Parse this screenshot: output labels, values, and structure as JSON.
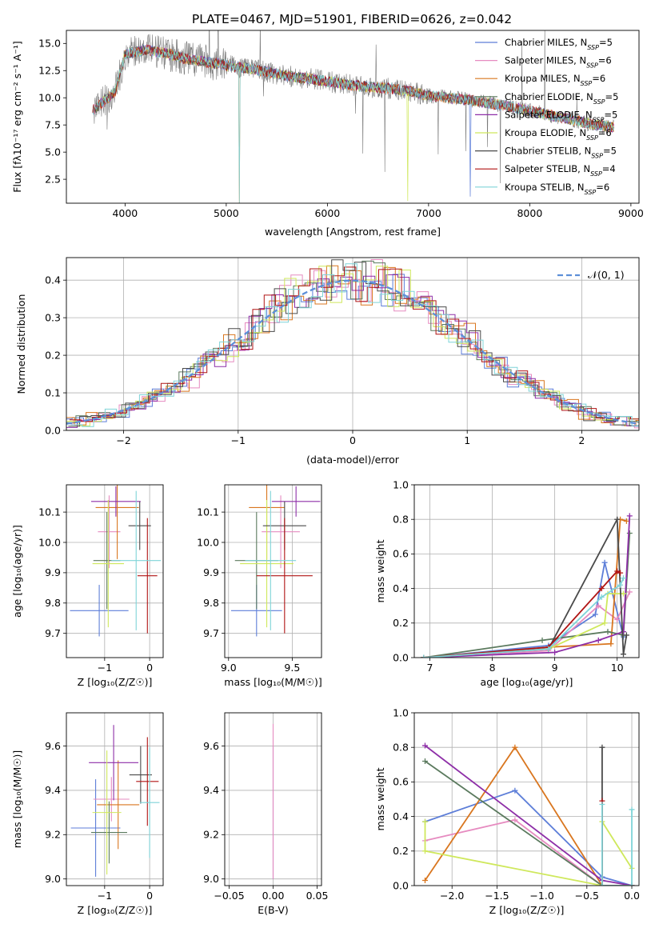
{
  "figure_title": "PLATE=0467, MJD=51901, FIBERID=0626, z=0.042",
  "palette": [
    "#5d7ed8",
    "#e68bc0",
    "#d9761f",
    "#5b7a5e",
    "#8e2fa8",
    "#cfe85c",
    "#4a4a4a",
    "#b01414",
    "#7fd4d8"
  ],
  "chart_data": [
    {
      "id": "spectrum",
      "type": "line",
      "title": "PLATE=0467, MJD=51901, FIBERID=0626, z=0.042",
      "xlabel": "wavelength [Angstrom, rest frame]",
      "ylabel": "Flux [fλ10⁻¹⁷ erg cm⁻² s⁻¹ A⁻¹]",
      "xlim": [
        3420,
        9080
      ],
      "ylim": [
        0.3,
        16.2
      ],
      "xticks": [
        "4000",
        "5000",
        "6000",
        "7000",
        "8000",
        "9000"
      ],
      "yticks": [
        "2.5",
        "5.0",
        "7.5",
        "10.0",
        "12.5",
        "15.0"
      ],
      "grid": false,
      "legend_position": "top-right",
      "series": [
        {
          "name": "Chabrier MILES, N_SSP=5"
        },
        {
          "name": "Salpeter MILES, N_SSP=6"
        },
        {
          "name": "Kroupa MILES, N_SSP=6"
        },
        {
          "name": "Chabrier ELODIE, N_SSP=5"
        },
        {
          "name": "Salpeter ELODIE, N_SSP=5"
        },
        {
          "name": "Kroupa ELODIE, N_SSP=6"
        },
        {
          "name": "Chabrier STELIB, N_SSP=5"
        },
        {
          "name": "Salpeter STELIB, N_SSP=4"
        },
        {
          "name": "Kroupa STELIB, N_SSP=6"
        }
      ],
      "data_trend": {
        "wavelength": [
          3700,
          3900,
          4000,
          4200,
          4400,
          4600,
          4800,
          5000,
          5200,
          5400,
          5600,
          5800,
          6000,
          6200,
          6400,
          6600,
          6800,
          7000,
          7200,
          7400,
          7600,
          7800,
          8000,
          8200,
          8400,
          8600,
          8800
        ],
        "flux": [
          9.0,
          10.5,
          14.0,
          14.4,
          14.1,
          13.6,
          13.3,
          13.0,
          12.7,
          12.4,
          12.0,
          11.8,
          11.5,
          11.2,
          11.0,
          10.9,
          10.6,
          10.2,
          10.0,
          9.8,
          9.5,
          9.2,
          8.8,
          8.4,
          8.0,
          7.6,
          7.3
        ]
      }
    },
    {
      "id": "residuals",
      "type": "histogram",
      "xlabel": "(data-model)/error",
      "ylabel": "Normed distribution",
      "xlim": [
        -2.5,
        2.5
      ],
      "ylim": [
        0,
        0.46
      ],
      "xticks": [
        "−2",
        "−1",
        "0",
        "1",
        "2"
      ],
      "yticks": [
        "0.0",
        "0.1",
        "0.2",
        "0.3",
        "0.4"
      ],
      "grid": true,
      "legend_position": "top-right",
      "reference_curve": {
        "name": "𝒩(0, 1)",
        "mean": 0,
        "sigma": 1
      }
    },
    {
      "id": "age_vs_Z",
      "type": "errorbar",
      "xlabel": "Z [log₁₀(Z/Z☉)]",
      "ylabel": "age  [log₁₀(age/yr)]",
      "xlim": [
        -1.85,
        0.3
      ],
      "ylim": [
        9.62,
        10.19
      ],
      "xticks": [
        "−1",
        "0"
      ],
      "yticks": [
        "9.7",
        "9.8",
        "9.9",
        "10.0",
        "10.1"
      ],
      "grid": true,
      "points": [
        {
          "x": -1.12,
          "xerr": 0.65,
          "y": 9.775,
          "yerr": 0.085
        },
        {
          "x": -0.9,
          "xerr": 0.25,
          "y": 10.035,
          "yerr": 0.12
        },
        {
          "x": -0.72,
          "xerr": 0.48,
          "y": 10.115,
          "yerr": 0.17
        },
        {
          "x": -0.95,
          "xerr": 0.3,
          "y": 9.94,
          "yerr": 0.16
        },
        {
          "x": -0.75,
          "xerr": 0.55,
          "y": 10.135,
          "yerr": 0.05
        },
        {
          "x": -0.92,
          "xerr": 0.35,
          "y": 9.93,
          "yerr": 0.21
        },
        {
          "x": -0.22,
          "xerr": 0.25,
          "y": 10.055,
          "yerr": 0.08
        },
        {
          "x": -0.05,
          "xerr": 0.22,
          "y": 9.89,
          "yerr": 0.19
        },
        {
          "x": -0.3,
          "xerr": 0.55,
          "y": 9.94,
          "yerr": 0.23
        }
      ]
    },
    {
      "id": "age_vs_mass",
      "type": "errorbar",
      "xlabel": "mass [log₁₀(M/M☉)]",
      "ylabel": "",
      "xlim": [
        8.97,
        9.73
      ],
      "ylim": [
        9.62,
        10.19
      ],
      "xticks": [
        "9.0",
        "9.5"
      ],
      "yticks": [
        "9.7",
        "9.8",
        "9.9",
        "10.0",
        "10.1"
      ],
      "grid": true,
      "points": [
        {
          "x": 9.22,
          "xerr": 0.2,
          "y": 9.775,
          "yerr": 0.085
        },
        {
          "x": 9.41,
          "xerr": 0.15,
          "y": 10.035,
          "yerr": 0.12
        },
        {
          "x": 9.3,
          "xerr": 0.14,
          "y": 10.115,
          "yerr": 0.17
        },
        {
          "x": 9.22,
          "xerr": 0.17,
          "y": 9.94,
          "yerr": 0.16
        },
        {
          "x": 9.53,
          "xerr": 0.19,
          "y": 10.135,
          "yerr": 0.05
        },
        {
          "x": 9.3,
          "xerr": 0.21,
          "y": 9.93,
          "yerr": 0.21
        },
        {
          "x": 9.44,
          "xerr": 0.17,
          "y": 10.055,
          "yerr": 0.08
        },
        {
          "x": 9.44,
          "xerr": 0.22,
          "y": 9.89,
          "yerr": 0.19
        },
        {
          "x": 9.33,
          "xerr": 0.2,
          "y": 9.94,
          "yerr": 0.23
        }
      ]
    },
    {
      "id": "weight_vs_age",
      "type": "line",
      "xlabel": "age  [log₁₀(age/yr)]",
      "ylabel": "mass weight",
      "xlim": [
        6.75,
        10.35
      ],
      "ylim": [
        0,
        1
      ],
      "xticks": [
        "7",
        "8",
        "9",
        "10"
      ],
      "yticks": [
        "0.0",
        "0.2",
        "0.4",
        "0.6",
        "0.8",
        "1.0"
      ],
      "grid": true,
      "series": [
        {
          "x": [
            6.9,
            8.9,
            9.65,
            9.8,
            10.1
          ],
          "y": [
            0.0,
            0.07,
            0.25,
            0.55,
            0.12
          ]
        },
        {
          "x": [
            6.9,
            8.9,
            9.7,
            10.0,
            10.2
          ],
          "y": [
            0.0,
            0.04,
            0.3,
            0.22,
            0.38
          ]
        },
        {
          "x": [
            6.9,
            8.9,
            9.9,
            10.05,
            10.15
          ],
          "y": [
            0.0,
            0.06,
            0.08,
            0.8,
            0.79
          ]
        },
        {
          "x": [
            6.9,
            8.8,
            9.85,
            10.1,
            10.2
          ],
          "y": [
            0.0,
            0.1,
            0.15,
            0.13,
            0.72
          ]
        },
        {
          "x": [
            6.9,
            9.0,
            9.7,
            10.1,
            10.2
          ],
          "y": [
            0.0,
            0.03,
            0.1,
            0.15,
            0.82
          ]
        },
        {
          "x": [
            6.9,
            8.9,
            9.8,
            9.85,
            10.1
          ],
          "y": [
            0.0,
            0.05,
            0.2,
            0.37,
            0.37
          ]
        },
        {
          "x": [
            6.9,
            8.9,
            10.0,
            10.1,
            10.15
          ],
          "y": [
            0.0,
            0.05,
            0.8,
            0.02,
            0.13
          ]
        },
        {
          "x": [
            6.9,
            8.9,
            9.75,
            10.0,
            10.05
          ],
          "y": [
            0.0,
            0.06,
            0.4,
            0.5,
            0.49
          ]
        },
        {
          "x": [
            6.9,
            8.9,
            9.75,
            10.05,
            10.1
          ],
          "y": [
            0.0,
            0.05,
            0.35,
            0.42,
            0.46
          ]
        }
      ]
    },
    {
      "id": "mass_vs_Z",
      "type": "errorbar",
      "xlabel": "Z [log₁₀(Z/Z☉)]",
      "ylabel": "mass [log₁₀(M/M☉)]",
      "xlim": [
        -1.85,
        0.3
      ],
      "ylim": [
        8.97,
        9.75
      ],
      "xticks": [
        "−1",
        "0"
      ],
      "yticks": [
        "9.0",
        "9.2",
        "9.4",
        "9.6"
      ],
      "grid": true,
      "points": [
        {
          "x": -1.2,
          "xerr": 0.55,
          "y": 9.23,
          "yerr": 0.22
        },
        {
          "x": -0.85,
          "xerr": 0.4,
          "y": 9.36,
          "yerr": 0.1
        },
        {
          "x": -0.7,
          "xerr": 0.47,
          "y": 9.335,
          "yerr": 0.2
        },
        {
          "x": -0.9,
          "xerr": 0.4,
          "y": 9.21,
          "yerr": 0.14
        },
        {
          "x": -0.8,
          "xerr": 0.55,
          "y": 9.525,
          "yerr": 0.17
        },
        {
          "x": -0.95,
          "xerr": 0.32,
          "y": 9.3,
          "yerr": 0.28
        },
        {
          "x": -0.2,
          "xerr": 0.25,
          "y": 9.47,
          "yerr": 0.13
        },
        {
          "x": -0.05,
          "xerr": 0.25,
          "y": 9.44,
          "yerr": 0.2
        },
        {
          "x": 0.0,
          "xerr": 0.22,
          "y": 9.345,
          "yerr": 0.25
        }
      ]
    },
    {
      "id": "mass_vs_EBV",
      "type": "errorbar",
      "xlabel": "E(B-V)",
      "ylabel": "",
      "xlim": [
        -0.055,
        0.055
      ],
      "ylim": [
        8.97,
        9.75
      ],
      "xticks": [
        "−0.05",
        "0.00",
        "0.05"
      ],
      "yticks": [
        "9.0",
        "9.2",
        "9.4",
        "9.6"
      ],
      "grid": true,
      "points": [
        {
          "x": 0,
          "xerr": 0,
          "y": 9.3,
          "yerr": 0.3
        },
        {
          "x": 0,
          "xerr": 0,
          "y": 9.35,
          "yerr": 0.35
        }
      ]
    },
    {
      "id": "weight_vs_Z",
      "type": "line",
      "xlabel": "Z [log₁₀(Z/Z☉)]",
      "ylabel": "mass weight",
      "xlim": [
        -2.42,
        0.08
      ],
      "ylim": [
        0,
        1
      ],
      "xticks": [
        "−2.0",
        "−1.5",
        "−1.0",
        "−0.5",
        "0.0"
      ],
      "yticks": [
        "0.0",
        "0.2",
        "0.4",
        "0.6",
        "0.8",
        "1.0"
      ],
      "grid": true,
      "series": [
        {
          "x": [
            -2.3,
            -1.3,
            -0.33,
            0.0
          ],
          "y": [
            0.37,
            0.55,
            0.05,
            0.0
          ]
        },
        {
          "x": [
            -2.3,
            -1.3,
            -0.33,
            0.0
          ],
          "y": [
            0.26,
            0.38,
            0.0,
            0.0
          ]
        },
        {
          "x": [
            -2.3,
            -1.3,
            -0.33,
            0.0
          ],
          "y": [
            0.03,
            0.8,
            0.0,
            0.0
          ]
        },
        {
          "x": [
            -2.3,
            -0.33,
            0.0
          ],
          "y": [
            0.72,
            0.0,
            0.0
          ]
        },
        {
          "x": [
            -2.3,
            -0.33,
            0.0
          ],
          "y": [
            0.81,
            0.03,
            0.0
          ]
        },
        {
          "x": [
            -2.3,
            -2.3,
            -0.33,
            -0.33,
            0.0
          ],
          "y": [
            0.37,
            0.2,
            0.0,
            0.37,
            0.1
          ]
        },
        {
          "x": [
            -0.33,
            -0.33,
            0.0
          ],
          "y": [
            0.8,
            0.0,
            0.0
          ]
        },
        {
          "x": [
            -0.33,
            -0.33,
            0.0
          ],
          "y": [
            0.49,
            0.0,
            0.0
          ]
        },
        {
          "x": [
            -0.33,
            -0.33,
            0.0,
            0.0
          ],
          "y": [
            0.47,
            0.0,
            0.0,
            0.44
          ]
        }
      ]
    }
  ]
}
